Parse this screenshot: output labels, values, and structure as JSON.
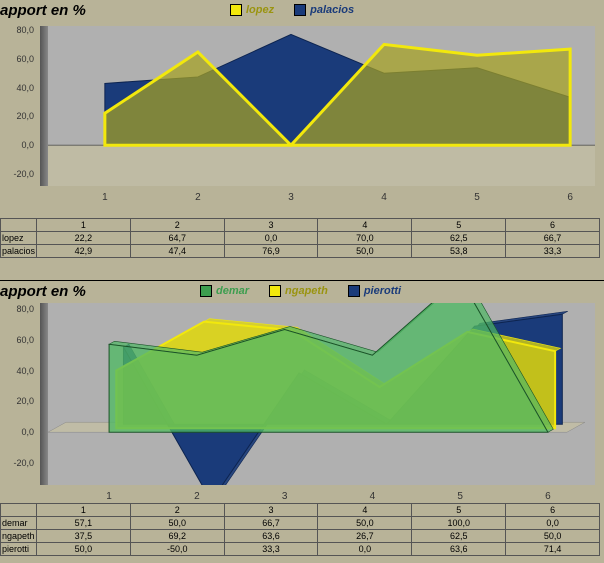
{
  "panel1": {
    "title": "apport en %",
    "legend": [
      {
        "label": "lopez",
        "color": "#f2e80c"
      },
      {
        "label": "palacios",
        "color": "#1a3b7a"
      }
    ],
    "chart": {
      "type": "area",
      "categories": [
        "1",
        "2",
        "3",
        "4",
        "5",
        "6"
      ],
      "ylabels": [
        "-20,0",
        "0,0",
        "20,0",
        "40,0",
        "60,0",
        "80,0"
      ],
      "ylim": [
        -20,
        80
      ],
      "background": "#b0b0b0",
      "floor": "#b8b398",
      "series": [
        {
          "name": "palacios",
          "values": [
            42.9,
            47.4,
            76.9,
            50.0,
            53.8,
            33.3
          ],
          "fill": "#1a3b7a",
          "stroke": "#0d2450",
          "opacity": 1.0
        },
        {
          "name": "lopez",
          "values": [
            22.2,
            64.7,
            0.0,
            70.0,
            62.5,
            66.7
          ],
          "fill": "#a6a224",
          "stroke": "#f2e80c",
          "opacity": 0.72,
          "stroke_width": 3
        }
      ]
    },
    "table": {
      "columns": [
        "1",
        "2",
        "3",
        "4",
        "5",
        "6"
      ],
      "rows": [
        {
          "label": "lopez",
          "cells": [
            "22,2",
            "64,7",
            "0,0",
            "70,0",
            "62,5",
            "66,7"
          ]
        },
        {
          "label": "palacios",
          "cells": [
            "42,9",
            "47,4",
            "76,9",
            "50,0",
            "53,8",
            "33,3"
          ]
        }
      ]
    }
  },
  "panel2": {
    "title": "apport en %",
    "legend": [
      {
        "label": "demar",
        "color": "#3d9e4f"
      },
      {
        "label": "ngapeth",
        "color": "#f2e80c"
      },
      {
        "label": "pierotti",
        "color": "#1a3b7a"
      }
    ],
    "chart": {
      "type": "area3d",
      "categories": [
        "1",
        "2",
        "3",
        "4",
        "5",
        "6"
      ],
      "ylabels": [
        "-20,0",
        "0,0",
        "20,0",
        "40,0",
        "60,0",
        "80,0"
      ],
      "ylim": [
        -20,
        80
      ],
      "background": "#b0b0b0",
      "depth_dx": 18,
      "depth_dy": -10,
      "series": [
        {
          "name": "pierotti",
          "values": [
            50.0,
            -50.0,
            33.3,
            0.0,
            63.6,
            71.4
          ],
          "fill": "#1a3b7a",
          "stroke": "#0d2450",
          "depth": 2
        },
        {
          "name": "ngapeth",
          "values": [
            37.5,
            69.2,
            63.6,
            26.7,
            62.5,
            50.0
          ],
          "fill": "#e0d80a",
          "stroke": "#f2e80c",
          "depth": 1,
          "stroke_width": 2,
          "opacity": 0.85
        },
        {
          "name": "demar",
          "values": [
            57.1,
            50.0,
            66.7,
            50.0,
            100.0,
            0.0
          ],
          "fill": "#4fb864",
          "stroke": "#1a5228",
          "depth": 0,
          "opacity": 0.78
        }
      ]
    },
    "table": {
      "columns": [
        "1",
        "2",
        "3",
        "4",
        "5",
        "6"
      ],
      "rows": [
        {
          "label": "demar",
          "cells": [
            "57,1",
            "50,0",
            "66,7",
            "50,0",
            "100,0",
            "0,0"
          ]
        },
        {
          "label": "ngapeth",
          "cells": [
            "37,5",
            "69,2",
            "63,6",
            "26,7",
            "62,5",
            "50,0"
          ]
        },
        {
          "label": "pierotti",
          "cells": [
            "50,0",
            "-50,0",
            "33,3",
            "0,0",
            "63,6",
            "71,4"
          ]
        }
      ]
    }
  }
}
